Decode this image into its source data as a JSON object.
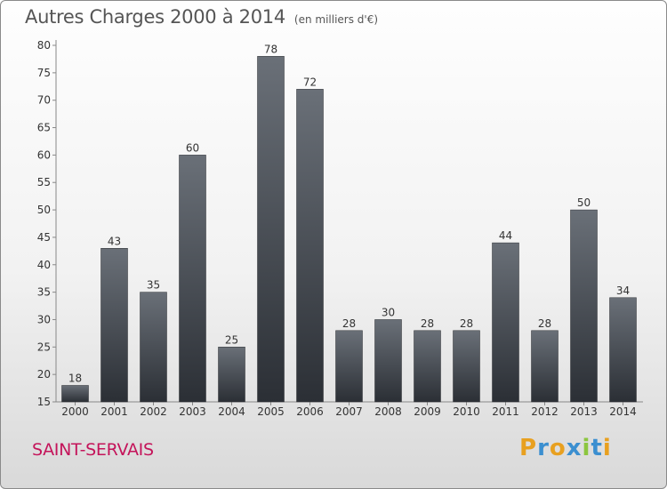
{
  "title": "Autres Charges 2000 à 2014",
  "subtitle": "(en milliers d'€)",
  "town": "SAINT-SERVAIS",
  "logo": {
    "letters": [
      "P",
      "r",
      "o",
      "x",
      "i",
      "t",
      "i"
    ],
    "colors": [
      "#e8a020",
      "#3b8fd0",
      "#e8a020",
      "#3b8fd0",
      "#8cc63f",
      "#3b8fd0",
      "#e8a020"
    ]
  },
  "colors": {
    "bar_top": "#6a7078",
    "bar_bottom": "#2b2f35",
    "title": "#555555",
    "town": "#c4145a"
  },
  "chart_data": {
    "type": "bar",
    "title": "Autres Charges 2000 à 2014",
    "subtitle": "(en milliers d'€)",
    "categories": [
      "2000",
      "2001",
      "2002",
      "2003",
      "2004",
      "2005",
      "2006",
      "2007",
      "2008",
      "2009",
      "2010",
      "2011",
      "2012",
      "2013",
      "2014"
    ],
    "values": [
      18,
      43,
      35,
      60,
      25,
      78,
      72,
      28,
      30,
      28,
      28,
      44,
      28,
      50,
      34
    ],
    "ylim": [
      15,
      80
    ],
    "yticks": [
      15,
      20,
      25,
      30,
      35,
      40,
      45,
      50,
      55,
      60,
      65,
      70,
      75,
      80
    ],
    "grid": false,
    "data_labels": true
  }
}
